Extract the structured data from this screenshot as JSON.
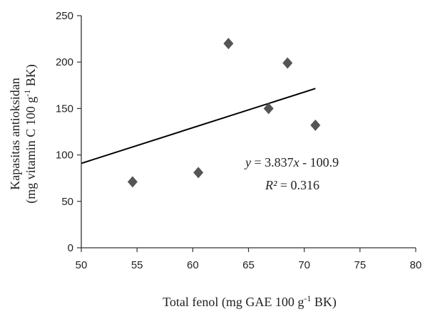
{
  "chart_data": {
    "type": "scatter",
    "title": "",
    "xlabel": {
      "prefix": "Total fenol (mg GAE 100 g",
      "sup": "-1",
      "suffix": " BK)"
    },
    "ylabel": {
      "line1": "Kapasitas antioksidan",
      "line2_prefix": "(mg vitamin C 100 g",
      "line2_sup": "-1",
      "line2_suffix": " BK)"
    },
    "xlim": [
      50,
      80
    ],
    "ylim": [
      0,
      250
    ],
    "x_ticks": [
      "50",
      "55",
      "60",
      "65",
      "70",
      "75",
      "80"
    ],
    "y_ticks": [
      "0",
      "50",
      "100",
      "150",
      "200",
      "250"
    ],
    "grid": false,
    "legend": "none",
    "marker": "diamond",
    "marker_color": "#555555",
    "points": [
      {
        "x": 54.6,
        "y": 71
      },
      {
        "x": 60.5,
        "y": 81
      },
      {
        "x": 63.2,
        "y": 220
      },
      {
        "x": 66.8,
        "y": 150
      },
      {
        "x": 68.5,
        "y": 199
      },
      {
        "x": 71.0,
        "y": 132
      }
    ],
    "trendline": {
      "slope": 3.837,
      "intercept": -100.9,
      "x_range": [
        50,
        71
      ],
      "color": "#000000"
    },
    "annotation": {
      "equation": {
        "y": "y",
        "eq": " = 3.837",
        "x": "x",
        "rest": " - 100.9"
      },
      "r2": {
        "r": "R²",
        "rest": " = 0.316"
      }
    }
  }
}
